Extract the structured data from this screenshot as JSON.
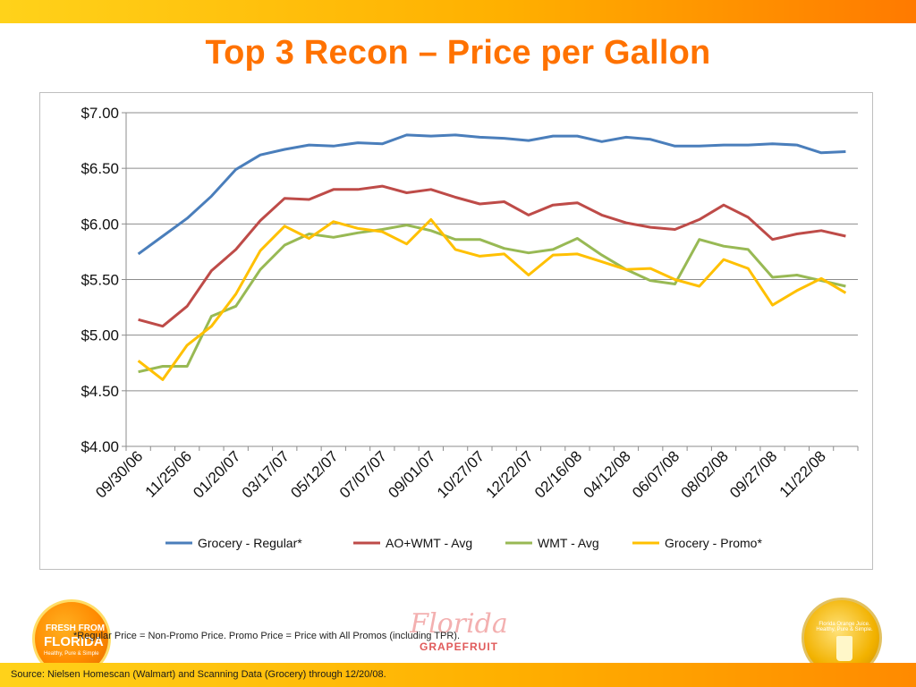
{
  "slide": {
    "title": "Top 3 Recon – Price per Gallon",
    "footnote": "*Regular Price  = Non-Promo Price.  Promo Price = Price with All Promos (including TPR).",
    "source": "Source:  Nielsen Homescan (Walmart) and Scanning Data (Grocery)  through 12/20/08."
  },
  "logos": {
    "left": {
      "line1": "FRESH FROM",
      "line2": "FLORIDA",
      "line3": "Healthy, Pure & Simple"
    },
    "center": {
      "script": "Florida",
      "word": "GRAPEFRUIT"
    },
    "right": {
      "text": "Florida Orange Juice. Healthy, Pure & Simple."
    }
  },
  "chart_data": {
    "type": "line",
    "title": "",
    "xlabel": "",
    "ylabel": "",
    "ylim": [
      4.0,
      7.0
    ],
    "yticks": [
      "$4.00",
      "$4.50",
      "$5.00",
      "$5.50",
      "$6.00",
      "$6.50",
      "$7.00"
    ],
    "ytick_values": [
      4.0,
      4.5,
      5.0,
      5.5,
      6.0,
      6.5,
      7.0
    ],
    "x_tick_labels": [
      "09/30/06",
      "11/25/06",
      "01/20/07",
      "03/17/07",
      "05/12/07",
      "07/07/07",
      "09/01/07",
      "10/27/07",
      "12/22/07",
      "02/16/08",
      "04/12/08",
      "06/07/08",
      "08/02/08",
      "09/27/08",
      "11/22/08"
    ],
    "x_tick_every": 2,
    "num_points": 30,
    "grid": true,
    "legend_position": "bottom",
    "series": [
      {
        "name": "Grocery - Regular*",
        "color": "#4a7ebb",
        "values": [
          5.73,
          5.89,
          6.05,
          6.25,
          6.49,
          6.62,
          6.67,
          6.71,
          6.7,
          6.73,
          6.72,
          6.8,
          6.79,
          6.8,
          6.78,
          6.77,
          6.75,
          6.79,
          6.79,
          6.74,
          6.78,
          6.76,
          6.7,
          6.7,
          6.71,
          6.71,
          6.72,
          6.71,
          6.64,
          6.65
        ]
      },
      {
        "name": "AO+WMT - Avg",
        "color": "#be4b48",
        "values": [
          5.14,
          5.08,
          5.26,
          5.58,
          5.77,
          6.03,
          6.23,
          6.22,
          6.31,
          6.31,
          6.34,
          6.28,
          6.31,
          6.24,
          6.18,
          6.2,
          6.08,
          6.17,
          6.19,
          6.08,
          6.01,
          5.97,
          5.95,
          6.04,
          6.17,
          6.06,
          5.86,
          5.91,
          5.94,
          5.89
        ]
      },
      {
        "name": "WMT - Avg",
        "color": "#98b954",
        "values": [
          4.67,
          4.72,
          4.72,
          5.17,
          5.26,
          5.59,
          5.81,
          5.91,
          5.88,
          5.92,
          5.95,
          5.99,
          5.94,
          5.86,
          5.86,
          5.78,
          5.74,
          5.77,
          5.87,
          5.72,
          5.59,
          5.49,
          5.46,
          5.86,
          5.8,
          5.77,
          5.52,
          5.54,
          5.49,
          5.44
        ]
      },
      {
        "name": "Grocery - Promo*",
        "color": "#ffc000",
        "values": [
          4.77,
          4.6,
          4.91,
          5.08,
          5.37,
          5.76,
          5.98,
          5.87,
          6.02,
          5.96,
          5.93,
          5.82,
          6.04,
          5.77,
          5.71,
          5.73,
          5.54,
          5.72,
          5.73,
          5.66,
          5.59,
          5.6,
          5.5,
          5.44,
          5.68,
          5.6,
          5.27,
          5.4,
          5.51,
          5.38
        ]
      }
    ]
  }
}
